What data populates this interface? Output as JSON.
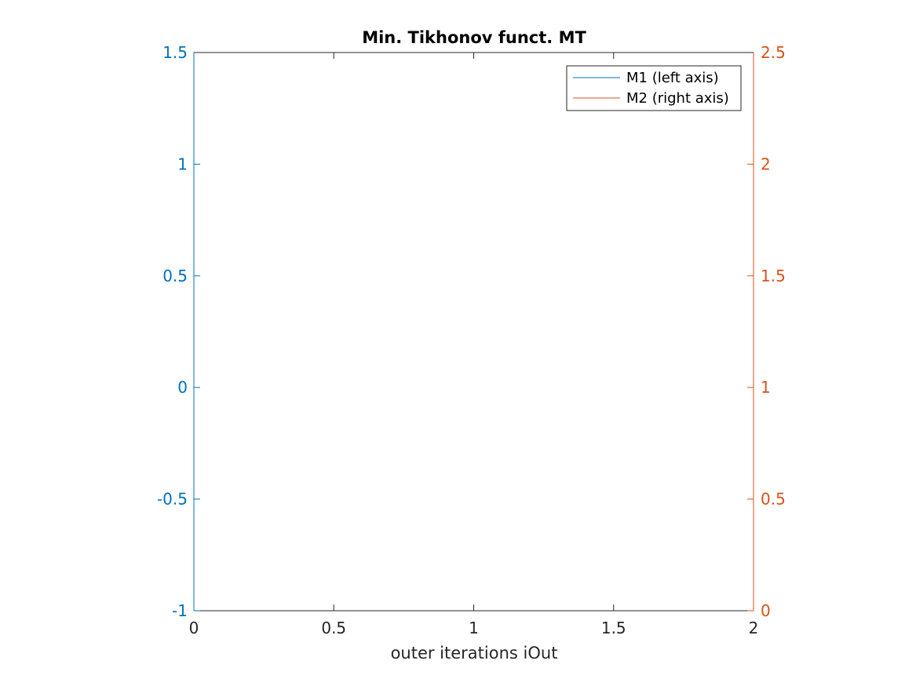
{
  "chart_data": {
    "type": "line",
    "title": "Min. Tikhonov funct. MT",
    "xlabel": "outer iterations iOut",
    "ylabel_left": "",
    "ylabel_right": "",
    "xlim": [
      0,
      2
    ],
    "ylim_left": [
      -1,
      1.5
    ],
    "ylim_right": [
      0,
      2.5
    ],
    "x_ticks": [
      0,
      0.5,
      1,
      1.5,
      2
    ],
    "x_tick_labels": [
      "0",
      "0.5",
      "1",
      "1.5",
      "2"
    ],
    "y_left_ticks": [
      -1,
      -0.5,
      0,
      0.5,
      1,
      1.5
    ],
    "y_left_tick_labels": [
      "-1",
      "-0.5",
      "0",
      "0.5",
      "1",
      "1.5"
    ],
    "y_right_ticks": [
      0,
      0.5,
      1,
      1.5,
      2,
      2.5
    ],
    "y_right_tick_labels": [
      "0",
      "0.5",
      "1",
      "1.5",
      "2",
      "2.5"
    ],
    "grid": false,
    "legend_position": "top-right",
    "series": [
      {
        "name": "M1 (left axis)",
        "axis": "left",
        "color": "#0072BD",
        "x": [],
        "y": []
      },
      {
        "name": "M2 (right axis)",
        "axis": "right",
        "color": "#D95319",
        "x": [],
        "y": []
      }
    ],
    "colors": {
      "left_axis": "#0072BD",
      "right_axis": "#D95319",
      "x_axis": "#262626"
    }
  }
}
